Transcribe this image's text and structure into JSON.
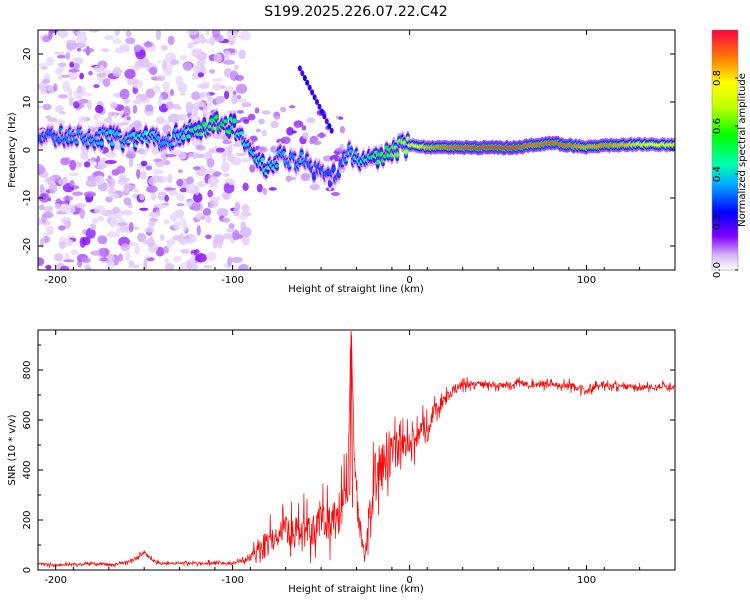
{
  "chart_data": [
    {
      "type": "heatmap",
      "title": "S199.2025.226.07.22.C42",
      "xlabel": "Height of straight line (km)",
      "ylabel": "Frequency (Hz)",
      "xlim": [
        -210,
        150
      ],
      "ylim": [
        -25,
        25
      ],
      "xticks": [
        -200,
        -100,
        0,
        100
      ],
      "xtick_labels": [
        "-200",
        "-100",
        "0",
        "100"
      ],
      "yticks": [
        20,
        10,
        0,
        -10,
        -20
      ],
      "ytick_labels": [
        "20",
        "10",
        "0",
        "-10",
        "-20"
      ],
      "ridge": {
        "x": [
          -210,
          -190,
          -170,
          -160,
          -150,
          -140,
          -130,
          -120,
          -110,
          -100,
          -95,
          -90,
          -85,
          -80,
          -75,
          -70,
          -65,
          -60,
          -55,
          -50,
          -45,
          -40,
          -35,
          -30,
          -25,
          -20,
          -15,
          -10,
          -5,
          0,
          10,
          20,
          40,
          60,
          70,
          80,
          90,
          100,
          110,
          120,
          130,
          150
        ],
        "y": [
          2,
          3,
          2.5,
          2,
          2.5,
          2,
          3,
          4.5,
          5.5,
          5,
          3,
          0,
          -3,
          -4,
          -2,
          -1,
          -3,
          -2,
          -4,
          -5,
          -6,
          -4,
          0,
          -2,
          -3,
          -2,
          -1,
          0,
          0.5,
          1,
          0.5,
          0.5,
          0.5,
          0.5,
          1,
          1.5,
          1,
          0.5,
          1,
          1,
          1.2,
          1
        ],
        "strength": [
          0.3,
          0.35,
          0.4,
          0.4,
          0.45,
          0.35,
          0.4,
          0.5,
          0.55,
          0.5,
          0.45,
          0.4,
          0.45,
          0.45,
          0.4,
          0.35,
          0.35,
          0.35,
          0.3,
          0.3,
          0.3,
          0.3,
          0.35,
          0.4,
          0.45,
          0.5,
          0.55,
          0.6,
          0.65,
          0.7,
          0.85,
          0.9,
          0.95,
          0.95,
          0.9,
          0.92,
          0.9,
          0.85,
          0.88,
          0.85,
          0.8,
          0.75
        ]
      },
      "colorbar": {
        "label": "Normalized spectral amplitude",
        "range": [
          0,
          1
        ],
        "ticks": [
          0.0,
          0.2,
          0.4,
          0.6,
          0.8
        ],
        "tick_labels": [
          "0.0",
          "0.2",
          "0.4",
          "0.6",
          "0.8"
        ]
      }
    },
    {
      "type": "line",
      "xlabel": "Height of straight line (km)",
      "ylabel": "SNR (10 * v/v)",
      "xlim": [
        -210,
        150
      ],
      "ylim": [
        0,
        960
      ],
      "xticks": [
        -200,
        -100,
        0,
        100
      ],
      "xtick_labels": [
        "-200",
        "-100",
        "0",
        "100"
      ],
      "yticks": [
        0,
        200,
        400,
        600,
        800
      ],
      "ytick_labels": [
        "0",
        "200",
        "400",
        "600",
        "800"
      ],
      "line_color": "#ff0000",
      "series": [
        {
          "name": "SNR",
          "x": [
            -210,
            -200,
            -190,
            -180,
            -170,
            -160,
            -155,
            -150,
            -145,
            -140,
            -130,
            -120,
            -110,
            -100,
            -95,
            -90,
            -85,
            -80,
            -75,
            -70,
            -65,
            -60,
            -55,
            -50,
            -45,
            -40,
            -35,
            -33,
            -31,
            -29,
            -27,
            -25,
            -22,
            -20,
            -15,
            -10,
            -5,
            0,
            5,
            10,
            15,
            20,
            25,
            30,
            40,
            50,
            60,
            70,
            80,
            90,
            100,
            110,
            120,
            130,
            140,
            150
          ],
          "y": [
            25,
            20,
            22,
            25,
            20,
            30,
            45,
            70,
            35,
            25,
            28,
            25,
            30,
            25,
            40,
            50,
            80,
            120,
            140,
            160,
            150,
            170,
            140,
            200,
            180,
            220,
            330,
            955,
            400,
            200,
            120,
            60,
            250,
            380,
            420,
            460,
            480,
            500,
            540,
            590,
            640,
            680,
            720,
            740,
            745,
            735,
            748,
            740,
            745,
            738,
            720,
            740,
            735,
            730,
            735,
            730
          ],
          "noise": [
            8,
            8,
            8,
            8,
            8,
            10,
            12,
            15,
            10,
            8,
            8,
            8,
            10,
            10,
            15,
            25,
            60,
            80,
            90,
            100,
            100,
            110,
            110,
            120,
            120,
            140,
            160,
            40,
            120,
            80,
            50,
            30,
            120,
            140,
            140,
            120,
            100,
            90,
            80,
            70,
            60,
            40,
            30,
            25,
            20,
            20,
            20,
            20,
            20,
            22,
            25,
            20,
            18,
            18,
            18,
            18
          ]
        }
      ]
    }
  ]
}
